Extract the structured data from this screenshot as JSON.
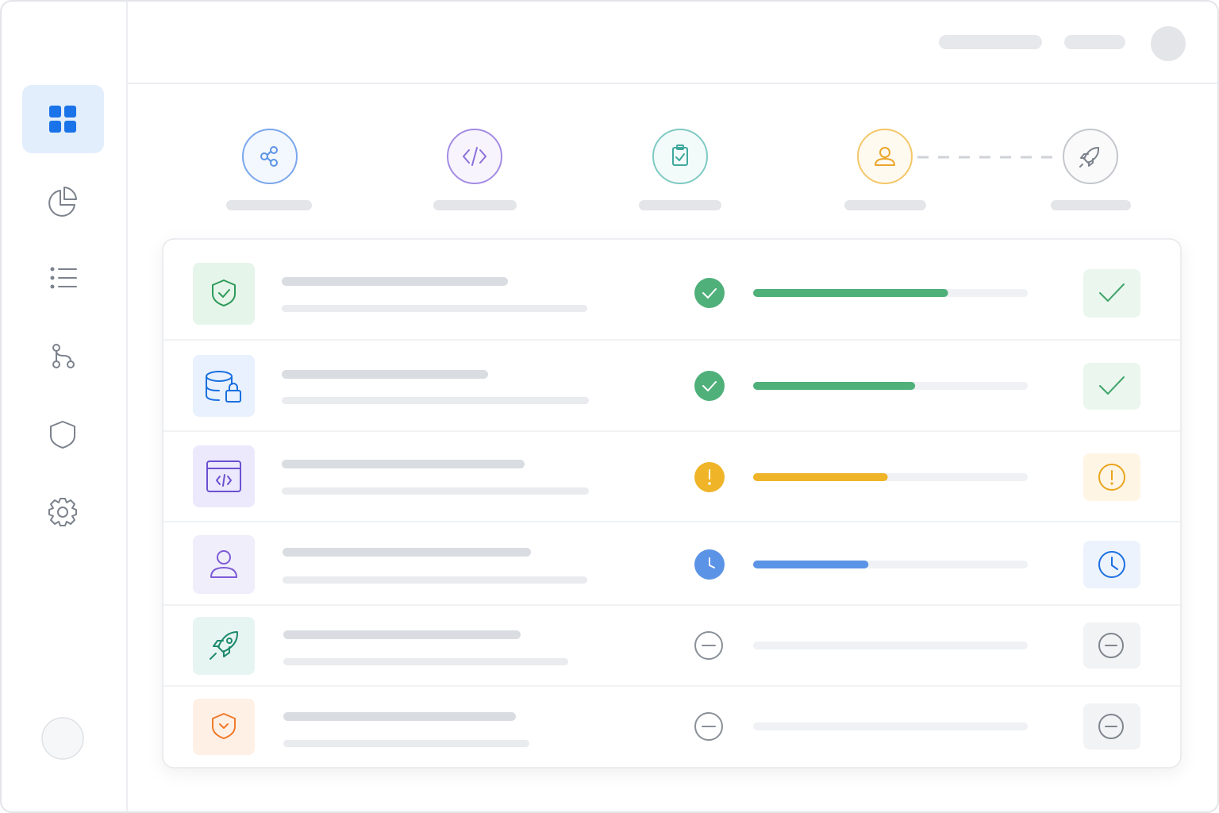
{
  "rows": [
    {
      "progress": 71,
      "color": "#4fb07a"
    },
    {
      "progress": 59,
      "color": "#4fb07a"
    },
    {
      "progress": 49,
      "color": "#efb428"
    },
    {
      "progress": 42,
      "color": "#5b93e6"
    },
    {
      "progress": 0,
      "color": "#9aa0a8"
    },
    {
      "progress": 0,
      "color": "#9aa0a8"
    }
  ]
}
